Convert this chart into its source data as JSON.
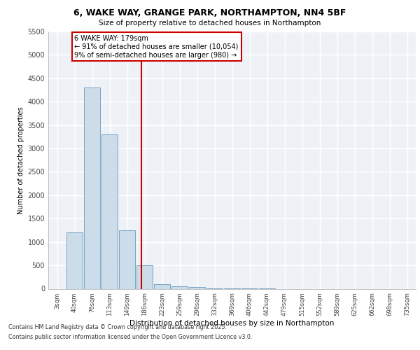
{
  "title": "6, WAKE WAY, GRANGE PARK, NORTHAMPTON, NN4 5BF",
  "subtitle": "Size of property relative to detached houses in Northampton",
  "xlabel": "Distribution of detached houses by size in Northampton",
  "ylabel": "Number of detached properties",
  "categories": [
    "3sqm",
    "40sqm",
    "76sqm",
    "113sqm",
    "149sqm",
    "186sqm",
    "223sqm",
    "259sqm",
    "296sqm",
    "332sqm",
    "369sqm",
    "406sqm",
    "442sqm",
    "479sqm",
    "515sqm",
    "552sqm",
    "589sqm",
    "625sqm",
    "662sqm",
    "698sqm",
    "735sqm"
  ],
  "values": [
    0,
    1200,
    4300,
    3300,
    1250,
    500,
    100,
    50,
    30,
    10,
    5,
    2,
    1,
    0,
    0,
    0,
    0,
    0,
    0,
    0,
    0
  ],
  "bar_color": "#ccdce8",
  "bar_edge_color": "#6699bb",
  "vline_color": "#cc0000",
  "annotation_text": "6 WAKE WAY: 179sqm\n← 91% of detached houses are smaller (10,054)\n9% of semi-detached houses are larger (980) →",
  "annotation_box_color": "#cc0000",
  "ylim": [
    0,
    5500
  ],
  "yticks": [
    0,
    500,
    1000,
    1500,
    2000,
    2500,
    3000,
    3500,
    4000,
    4500,
    5000,
    5500
  ],
  "background_color": "#eef2f7",
  "grid_color": "#ffffff",
  "footer_line1": "Contains HM Land Registry data © Crown copyright and database right 2025.",
  "footer_line2": "Contains public sector information licensed under the Open Government Licence v3.0."
}
